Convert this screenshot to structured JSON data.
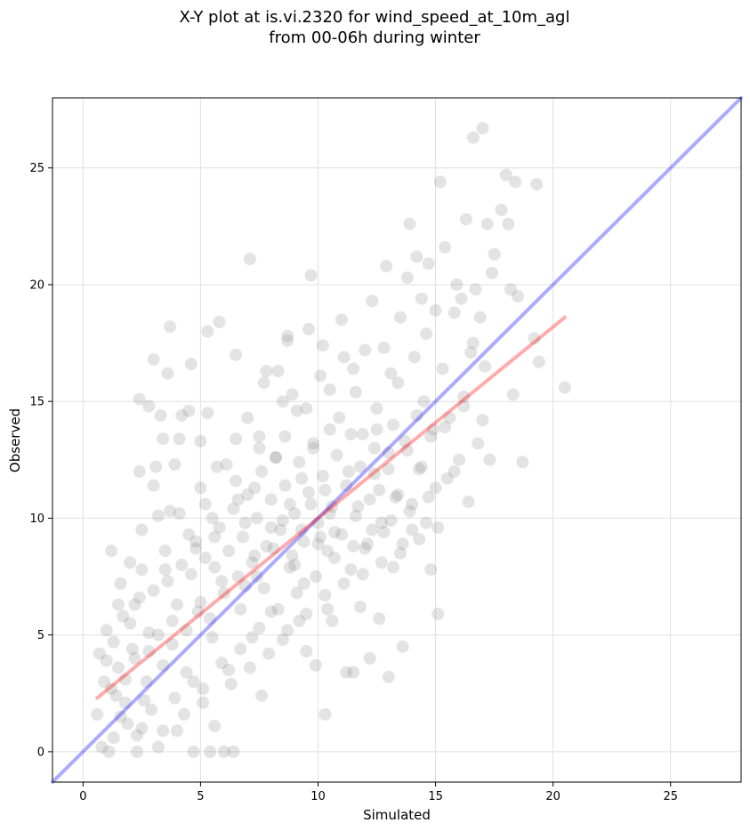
{
  "chart_data": {
    "type": "scatter",
    "title_lines": [
      "X-Y plot at is.vi.2320 for wind_speed_at_10m_agl",
      "from 00-06h during winter"
    ],
    "xlabel": "Simulated",
    "ylabel": "Observed",
    "xlim": [
      -1.3,
      28
    ],
    "ylim": [
      -1.3,
      28
    ],
    "xticks": [
      0,
      5,
      10,
      15,
      20,
      25
    ],
    "yticks": [
      0,
      5,
      10,
      15,
      20,
      25
    ],
    "grid": true,
    "lines": [
      {
        "role": "one-to-one",
        "color": "#0000ff",
        "opacity": 0.33,
        "x": [
          -1.3,
          28
        ],
        "y": [
          -1.3,
          28
        ]
      },
      {
        "role": "regression-fit",
        "color": "#ff0000",
        "opacity": 0.33,
        "x": [
          0.6,
          20.5
        ],
        "y": [
          2.3,
          18.6
        ]
      }
    ],
    "series": [
      {
        "color": "#808080",
        "opacity": 0.22,
        "points": [
          [
            0.6,
            1.6
          ],
          [
            0.7,
            4.2
          ],
          [
            0.8,
            0.2
          ],
          [
            1.0,
            3.9
          ],
          [
            1.1,
            0.0
          ],
          [
            1.2,
            8.6
          ],
          [
            1.2,
            2.7
          ],
          [
            1.3,
            0.6
          ],
          [
            1.3,
            4.7
          ],
          [
            1.5,
            3.6
          ],
          [
            1.6,
            7.2
          ],
          [
            1.7,
            5.8
          ],
          [
            1.8,
            2.1
          ],
          [
            1.9,
            1.2
          ],
          [
            2.0,
            8.1
          ],
          [
            2.1,
            4.4
          ],
          [
            2.2,
            6.3
          ],
          [
            2.3,
            0.0
          ],
          [
            2.4,
            15.1
          ],
          [
            2.4,
            12.0
          ],
          [
            2.5,
            9.5
          ],
          [
            2.5,
            1.0
          ],
          [
            2.7,
            3.0
          ],
          [
            2.8,
            14.8
          ],
          [
            2.8,
            5.1
          ],
          [
            3.0,
            16.8
          ],
          [
            3.0,
            11.4
          ],
          [
            3.1,
            12.2
          ],
          [
            3.2,
            10.1
          ],
          [
            3.2,
            0.2
          ],
          [
            3.3,
            14.4
          ],
          [
            3.4,
            13.4
          ],
          [
            3.5,
            7.8
          ],
          [
            3.6,
            16.2
          ],
          [
            3.7,
            18.2
          ],
          [
            3.7,
            10.3
          ],
          [
            3.8,
            5.6
          ],
          [
            3.9,
            12.3
          ],
          [
            4.0,
            0.9
          ],
          [
            4.1,
            10.2
          ],
          [
            4.1,
            13.4
          ],
          [
            4.2,
            14.4
          ],
          [
            4.4,
            3.4
          ],
          [
            4.5,
            14.6
          ],
          [
            4.6,
            16.6
          ],
          [
            4.7,
            0.0
          ],
          [
            4.8,
            8.7
          ],
          [
            4.9,
            6.0
          ],
          [
            5.0,
            11.3
          ],
          [
            5.0,
            13.3
          ],
          [
            5.1,
            2.1
          ],
          [
            5.2,
            10.6
          ],
          [
            5.3,
            18.0
          ],
          [
            5.3,
            14.5
          ],
          [
            5.4,
            0.0
          ],
          [
            5.5,
            4.9
          ],
          [
            5.6,
            9.2
          ],
          [
            5.7,
            12.2
          ],
          [
            5.8,
            18.4
          ],
          [
            5.9,
            7.3
          ],
          [
            6.0,
            0.0
          ],
          [
            6.1,
            12.3
          ],
          [
            6.2,
            3.5
          ],
          [
            6.4,
            0.0
          ],
          [
            6.5,
            13.4
          ],
          [
            6.5,
            17.0
          ],
          [
            6.6,
            10.8
          ],
          [
            6.7,
            6.1
          ],
          [
            6.9,
            9.8
          ],
          [
            7.0,
            14.3
          ],
          [
            7.1,
            21.1
          ],
          [
            7.2,
            4.9
          ],
          [
            7.3,
            11.3
          ],
          [
            7.4,
            7.5
          ],
          [
            7.5,
            13.5
          ],
          [
            7.6,
            2.4
          ],
          [
            7.7,
            15.8
          ],
          [
            7.8,
            16.3
          ],
          [
            8.0,
            9.6
          ],
          [
            8.0,
            6.0
          ],
          [
            8.2,
            12.6
          ],
          [
            8.3,
            16.3
          ],
          [
            8.5,
            4.8
          ],
          [
            8.6,
            13.5
          ],
          [
            8.7,
            17.6
          ],
          [
            8.7,
            17.8
          ],
          [
            8.8,
            10.6
          ],
          [
            8.9,
            15.3
          ],
          [
            9.0,
            8.0
          ],
          [
            9.1,
            14.6
          ],
          [
            9.2,
            5.6
          ],
          [
            9.3,
            11.7
          ],
          [
            9.4,
            7.2
          ],
          [
            9.5,
            4.3
          ],
          [
            9.6,
            18.1
          ],
          [
            9.7,
            20.4
          ],
          [
            9.8,
            13.2
          ],
          [
            9.9,
            3.7
          ],
          [
            10.0,
            8.9
          ],
          [
            10.1,
            16.1
          ],
          [
            10.2,
            17.4
          ],
          [
            10.3,
            1.6
          ],
          [
            10.3,
            11.2
          ],
          [
            10.4,
            6.1
          ],
          [
            10.5,
            13.8
          ],
          [
            10.6,
            5.6
          ],
          [
            10.7,
            9.4
          ],
          [
            10.9,
            14.3
          ],
          [
            11.0,
            18.5
          ],
          [
            11.1,
            16.9
          ],
          [
            11.2,
            3.4
          ],
          [
            11.3,
            12.0
          ],
          [
            11.4,
            7.8
          ],
          [
            11.5,
            3.4
          ],
          [
            11.6,
            15.4
          ],
          [
            11.7,
            10.5
          ],
          [
            11.8,
            6.2
          ],
          [
            11.9,
            13.6
          ],
          [
            12.0,
            17.2
          ],
          [
            12.1,
            8.9
          ],
          [
            12.2,
            4.0
          ],
          [
            12.3,
            19.3
          ],
          [
            12.4,
            11.9
          ],
          [
            12.5,
            14.7
          ],
          [
            12.6,
            5.7
          ],
          [
            12.7,
            9.8
          ],
          [
            12.8,
            17.3
          ],
          [
            12.9,
            20.8
          ],
          [
            13.0,
            3.2
          ],
          [
            13.0,
            12.8
          ],
          [
            13.1,
            16.2
          ],
          [
            13.2,
            7.9
          ],
          [
            13.3,
            10.9
          ],
          [
            13.4,
            15.8
          ],
          [
            13.5,
            18.6
          ],
          [
            13.6,
            4.5
          ],
          [
            13.7,
            13.3
          ],
          [
            13.8,
            20.3
          ],
          [
            13.9,
            22.6
          ],
          [
            14.0,
            9.5
          ],
          [
            14.1,
            16.9
          ],
          [
            14.2,
            21.2
          ],
          [
            14.3,
            12.1
          ],
          [
            14.4,
            19.4
          ],
          [
            14.5,
            15.0
          ],
          [
            14.6,
            17.9
          ],
          [
            14.7,
            20.9
          ],
          [
            14.8,
            7.8
          ],
          [
            14.9,
            13.8
          ],
          [
            15.0,
            18.9
          ],
          [
            15.1,
            5.9
          ],
          [
            15.2,
            24.4
          ],
          [
            15.3,
            16.4
          ],
          [
            15.4,
            21.6
          ],
          [
            15.5,
            11.7
          ],
          [
            15.6,
            14.3
          ],
          [
            15.8,
            18.8
          ],
          [
            15.9,
            20.0
          ],
          [
            16.0,
            12.5
          ],
          [
            16.1,
            19.4
          ],
          [
            16.2,
            15.2
          ],
          [
            16.3,
            22.8
          ],
          [
            16.4,
            10.7
          ],
          [
            16.5,
            17.1
          ],
          [
            16.6,
            26.3
          ],
          [
            16.7,
            19.8
          ],
          [
            16.8,
            13.2
          ],
          [
            16.9,
            18.6
          ],
          [
            17.0,
            26.7
          ],
          [
            17.1,
            16.5
          ],
          [
            17.2,
            22.6
          ],
          [
            17.3,
            12.5
          ],
          [
            17.4,
            20.5
          ],
          [
            17.5,
            21.3
          ],
          [
            17.8,
            23.2
          ],
          [
            18.0,
            24.7
          ],
          [
            18.1,
            22.6
          ],
          [
            18.2,
            19.8
          ],
          [
            18.3,
            15.3
          ],
          [
            18.4,
            24.4
          ],
          [
            18.5,
            19.5
          ],
          [
            18.7,
            12.4
          ],
          [
            19.2,
            17.7
          ],
          [
            19.3,
            24.3
          ],
          [
            19.4,
            16.7
          ],
          [
            20.5,
            15.6
          ],
          [
            1.0,
            5.2
          ],
          [
            1.4,
            2.4
          ],
          [
            1.8,
            3.1
          ],
          [
            2.0,
            5.5
          ],
          [
            2.2,
            4.0
          ],
          [
            2.4,
            6.6
          ],
          [
            2.6,
            2.2
          ],
          [
            2.8,
            4.3
          ],
          [
            3.0,
            6.9
          ],
          [
            3.2,
            5.0
          ],
          [
            3.4,
            3.7
          ],
          [
            3.6,
            7.3
          ],
          [
            3.8,
            4.6
          ],
          [
            4.0,
            6.3
          ],
          [
            4.2,
            8.0
          ],
          [
            4.4,
            5.2
          ],
          [
            4.6,
            7.6
          ],
          [
            4.8,
            9.0
          ],
          [
            5.0,
            6.4
          ],
          [
            5.2,
            8.3
          ],
          [
            5.4,
            5.7
          ],
          [
            5.6,
            7.9
          ],
          [
            5.8,
            9.6
          ],
          [
            6.0,
            6.8
          ],
          [
            6.2,
            8.6
          ],
          [
            6.4,
            10.4
          ],
          [
            6.6,
            7.5
          ],
          [
            6.8,
            9.2
          ],
          [
            7.0,
            11.0
          ],
          [
            7.2,
            8.1
          ],
          [
            7.4,
            10.0
          ],
          [
            7.6,
            12.0
          ],
          [
            7.8,
            8.8
          ],
          [
            8.0,
            10.8
          ],
          [
            8.2,
            12.6
          ],
          [
            8.4,
            9.5
          ],
          [
            8.6,
            11.4
          ],
          [
            8.8,
            7.9
          ],
          [
            9.0,
            10.2
          ],
          [
            9.2,
            12.4
          ],
          [
            9.4,
            9.0
          ],
          [
            9.6,
            11.1
          ],
          [
            9.8,
            13.0
          ],
          [
            10.0,
            9.8
          ],
          [
            10.2,
            11.8
          ],
          [
            10.4,
            8.6
          ],
          [
            10.6,
            10.5
          ],
          [
            10.8,
            12.7
          ],
          [
            11.0,
            9.3
          ],
          [
            11.2,
            11.4
          ],
          [
            11.4,
            13.6
          ],
          [
            11.6,
            10.1
          ],
          [
            11.8,
            12.2
          ],
          [
            12.0,
            8.7
          ],
          [
            12.2,
            10.8
          ],
          [
            12.4,
            13.0
          ],
          [
            12.6,
            11.2
          ],
          [
            12.8,
            9.4
          ],
          [
            13.0,
            12.1
          ],
          [
            13.2,
            14.0
          ],
          [
            13.4,
            11.0
          ],
          [
            13.6,
            8.9
          ],
          [
            13.8,
            12.9
          ],
          [
            14.0,
            10.6
          ],
          [
            14.2,
            14.4
          ],
          [
            14.4,
            12.2
          ],
          [
            14.6,
            9.8
          ],
          [
            14.8,
            13.5
          ],
          [
            15.0,
            11.3
          ],
          [
            15.4,
            13.9
          ],
          [
            15.8,
            12.0
          ],
          [
            16.2,
            14.8
          ],
          [
            16.6,
            17.5
          ],
          [
            17.0,
            14.2
          ],
          [
            9.5,
            14.7
          ],
          [
            10.5,
            15.5
          ],
          [
            11.5,
            16.4
          ],
          [
            12.5,
            13.8
          ],
          [
            8.5,
            15.0
          ],
          [
            7.5,
            13.0
          ],
          [
            6.5,
            11.6
          ],
          [
            5.5,
            10.0
          ],
          [
            4.5,
            9.3
          ],
          [
            3.5,
            8.6
          ],
          [
            2.5,
            7.8
          ],
          [
            1.5,
            6.3
          ],
          [
            0.9,
            3.0
          ],
          [
            1.6,
            1.5
          ],
          [
            2.3,
            0.7
          ],
          [
            2.9,
            1.8
          ],
          [
            3.4,
            0.9
          ],
          [
            3.9,
            2.3
          ],
          [
            4.3,
            1.6
          ],
          [
            4.7,
            3.0
          ],
          [
            5.1,
            2.7
          ],
          [
            5.6,
            1.1
          ],
          [
            5.9,
            3.8
          ],
          [
            6.3,
            2.9
          ],
          [
            6.7,
            4.4
          ],
          [
            7.1,
            3.6
          ],
          [
            7.5,
            5.3
          ],
          [
            7.9,
            4.2
          ],
          [
            8.3,
            6.1
          ],
          [
            8.7,
            5.2
          ],
          [
            9.1,
            6.8
          ],
          [
            9.5,
            5.9
          ],
          [
            9.9,
            7.5
          ],
          [
            10.3,
            6.7
          ],
          [
            10.7,
            8.3
          ],
          [
            11.1,
            7.2
          ],
          [
            11.5,
            8.8
          ],
          [
            11.9,
            7.6
          ],
          [
            12.3,
            9.5
          ],
          [
            12.7,
            8.1
          ],
          [
            13.1,
            9.9
          ],
          [
            13.5,
            8.5
          ],
          [
            13.9,
            10.3
          ],
          [
            14.3,
            9.1
          ],
          [
            14.7,
            10.9
          ],
          [
            15.1,
            9.6
          ],
          [
            6.9,
            7.1
          ],
          [
            7.3,
            8.4
          ],
          [
            7.7,
            7.0
          ],
          [
            8.1,
            8.7
          ],
          [
            8.5,
            9.9
          ],
          [
            8.9,
            8.4
          ],
          [
            9.3,
            9.5
          ],
          [
            9.7,
            10.6
          ],
          [
            10.1,
            9.2
          ],
          [
            10.5,
            10.2
          ]
        ]
      }
    ]
  }
}
